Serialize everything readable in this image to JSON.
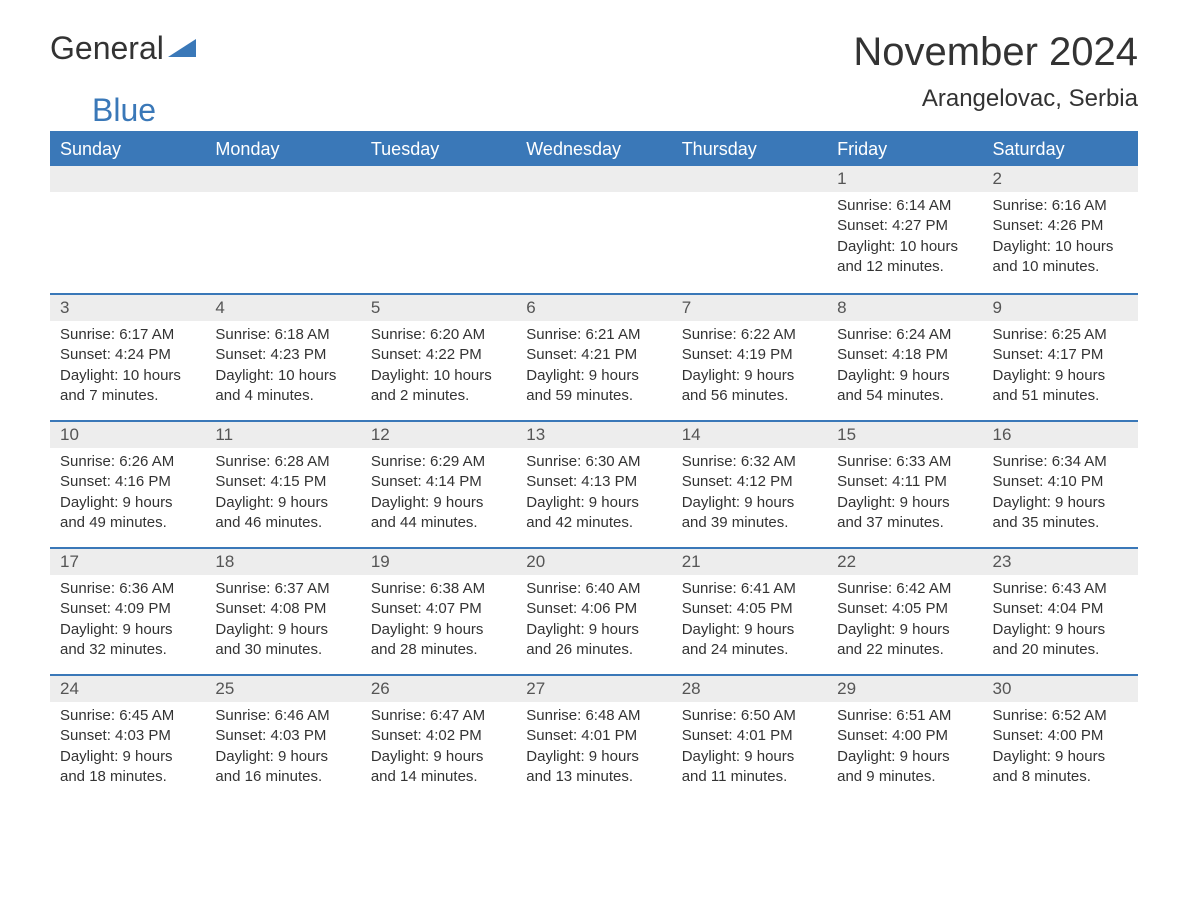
{
  "logo": {
    "general": "General",
    "blue": "Blue"
  },
  "title": "November 2024",
  "location": "Arangelovac, Serbia",
  "colors": {
    "header_bg": "#3a78b8",
    "header_text": "#ffffff",
    "daynum_bg": "#ededed",
    "border": "#3a78b8",
    "body_text": "#333333",
    "page_bg": "#ffffff"
  },
  "day_headers": [
    "Sunday",
    "Monday",
    "Tuesday",
    "Wednesday",
    "Thursday",
    "Friday",
    "Saturday"
  ],
  "weeks": [
    [
      null,
      null,
      null,
      null,
      null,
      {
        "num": "1",
        "sunrise": "Sunrise: 6:14 AM",
        "sunset": "Sunset: 4:27 PM",
        "daylight": "Daylight: 10 hours and 12 minutes."
      },
      {
        "num": "2",
        "sunrise": "Sunrise: 6:16 AM",
        "sunset": "Sunset: 4:26 PM",
        "daylight": "Daylight: 10 hours and 10 minutes."
      }
    ],
    [
      {
        "num": "3",
        "sunrise": "Sunrise: 6:17 AM",
        "sunset": "Sunset: 4:24 PM",
        "daylight": "Daylight: 10 hours and 7 minutes."
      },
      {
        "num": "4",
        "sunrise": "Sunrise: 6:18 AM",
        "sunset": "Sunset: 4:23 PM",
        "daylight": "Daylight: 10 hours and 4 minutes."
      },
      {
        "num": "5",
        "sunrise": "Sunrise: 6:20 AM",
        "sunset": "Sunset: 4:22 PM",
        "daylight": "Daylight: 10 hours and 2 minutes."
      },
      {
        "num": "6",
        "sunrise": "Sunrise: 6:21 AM",
        "sunset": "Sunset: 4:21 PM",
        "daylight": "Daylight: 9 hours and 59 minutes."
      },
      {
        "num": "7",
        "sunrise": "Sunrise: 6:22 AM",
        "sunset": "Sunset: 4:19 PM",
        "daylight": "Daylight: 9 hours and 56 minutes."
      },
      {
        "num": "8",
        "sunrise": "Sunrise: 6:24 AM",
        "sunset": "Sunset: 4:18 PM",
        "daylight": "Daylight: 9 hours and 54 minutes."
      },
      {
        "num": "9",
        "sunrise": "Sunrise: 6:25 AM",
        "sunset": "Sunset: 4:17 PM",
        "daylight": "Daylight: 9 hours and 51 minutes."
      }
    ],
    [
      {
        "num": "10",
        "sunrise": "Sunrise: 6:26 AM",
        "sunset": "Sunset: 4:16 PM",
        "daylight": "Daylight: 9 hours and 49 minutes."
      },
      {
        "num": "11",
        "sunrise": "Sunrise: 6:28 AM",
        "sunset": "Sunset: 4:15 PM",
        "daylight": "Daylight: 9 hours and 46 minutes."
      },
      {
        "num": "12",
        "sunrise": "Sunrise: 6:29 AM",
        "sunset": "Sunset: 4:14 PM",
        "daylight": "Daylight: 9 hours and 44 minutes."
      },
      {
        "num": "13",
        "sunrise": "Sunrise: 6:30 AM",
        "sunset": "Sunset: 4:13 PM",
        "daylight": "Daylight: 9 hours and 42 minutes."
      },
      {
        "num": "14",
        "sunrise": "Sunrise: 6:32 AM",
        "sunset": "Sunset: 4:12 PM",
        "daylight": "Daylight: 9 hours and 39 minutes."
      },
      {
        "num": "15",
        "sunrise": "Sunrise: 6:33 AM",
        "sunset": "Sunset: 4:11 PM",
        "daylight": "Daylight: 9 hours and 37 minutes."
      },
      {
        "num": "16",
        "sunrise": "Sunrise: 6:34 AM",
        "sunset": "Sunset: 4:10 PM",
        "daylight": "Daylight: 9 hours and 35 minutes."
      }
    ],
    [
      {
        "num": "17",
        "sunrise": "Sunrise: 6:36 AM",
        "sunset": "Sunset: 4:09 PM",
        "daylight": "Daylight: 9 hours and 32 minutes."
      },
      {
        "num": "18",
        "sunrise": "Sunrise: 6:37 AM",
        "sunset": "Sunset: 4:08 PM",
        "daylight": "Daylight: 9 hours and 30 minutes."
      },
      {
        "num": "19",
        "sunrise": "Sunrise: 6:38 AM",
        "sunset": "Sunset: 4:07 PM",
        "daylight": "Daylight: 9 hours and 28 minutes."
      },
      {
        "num": "20",
        "sunrise": "Sunrise: 6:40 AM",
        "sunset": "Sunset: 4:06 PM",
        "daylight": "Daylight: 9 hours and 26 minutes."
      },
      {
        "num": "21",
        "sunrise": "Sunrise: 6:41 AM",
        "sunset": "Sunset: 4:05 PM",
        "daylight": "Daylight: 9 hours and 24 minutes."
      },
      {
        "num": "22",
        "sunrise": "Sunrise: 6:42 AM",
        "sunset": "Sunset: 4:05 PM",
        "daylight": "Daylight: 9 hours and 22 minutes."
      },
      {
        "num": "23",
        "sunrise": "Sunrise: 6:43 AM",
        "sunset": "Sunset: 4:04 PM",
        "daylight": "Daylight: 9 hours and 20 minutes."
      }
    ],
    [
      {
        "num": "24",
        "sunrise": "Sunrise: 6:45 AM",
        "sunset": "Sunset: 4:03 PM",
        "daylight": "Daylight: 9 hours and 18 minutes."
      },
      {
        "num": "25",
        "sunrise": "Sunrise: 6:46 AM",
        "sunset": "Sunset: 4:03 PM",
        "daylight": "Daylight: 9 hours and 16 minutes."
      },
      {
        "num": "26",
        "sunrise": "Sunrise: 6:47 AM",
        "sunset": "Sunset: 4:02 PM",
        "daylight": "Daylight: 9 hours and 14 minutes."
      },
      {
        "num": "27",
        "sunrise": "Sunrise: 6:48 AM",
        "sunset": "Sunset: 4:01 PM",
        "daylight": "Daylight: 9 hours and 13 minutes."
      },
      {
        "num": "28",
        "sunrise": "Sunrise: 6:50 AM",
        "sunset": "Sunset: 4:01 PM",
        "daylight": "Daylight: 9 hours and 11 minutes."
      },
      {
        "num": "29",
        "sunrise": "Sunrise: 6:51 AM",
        "sunset": "Sunset: 4:00 PM",
        "daylight": "Daylight: 9 hours and 9 minutes."
      },
      {
        "num": "30",
        "sunrise": "Sunrise: 6:52 AM",
        "sunset": "Sunset: 4:00 PM",
        "daylight": "Daylight: 9 hours and 8 minutes."
      }
    ]
  ]
}
